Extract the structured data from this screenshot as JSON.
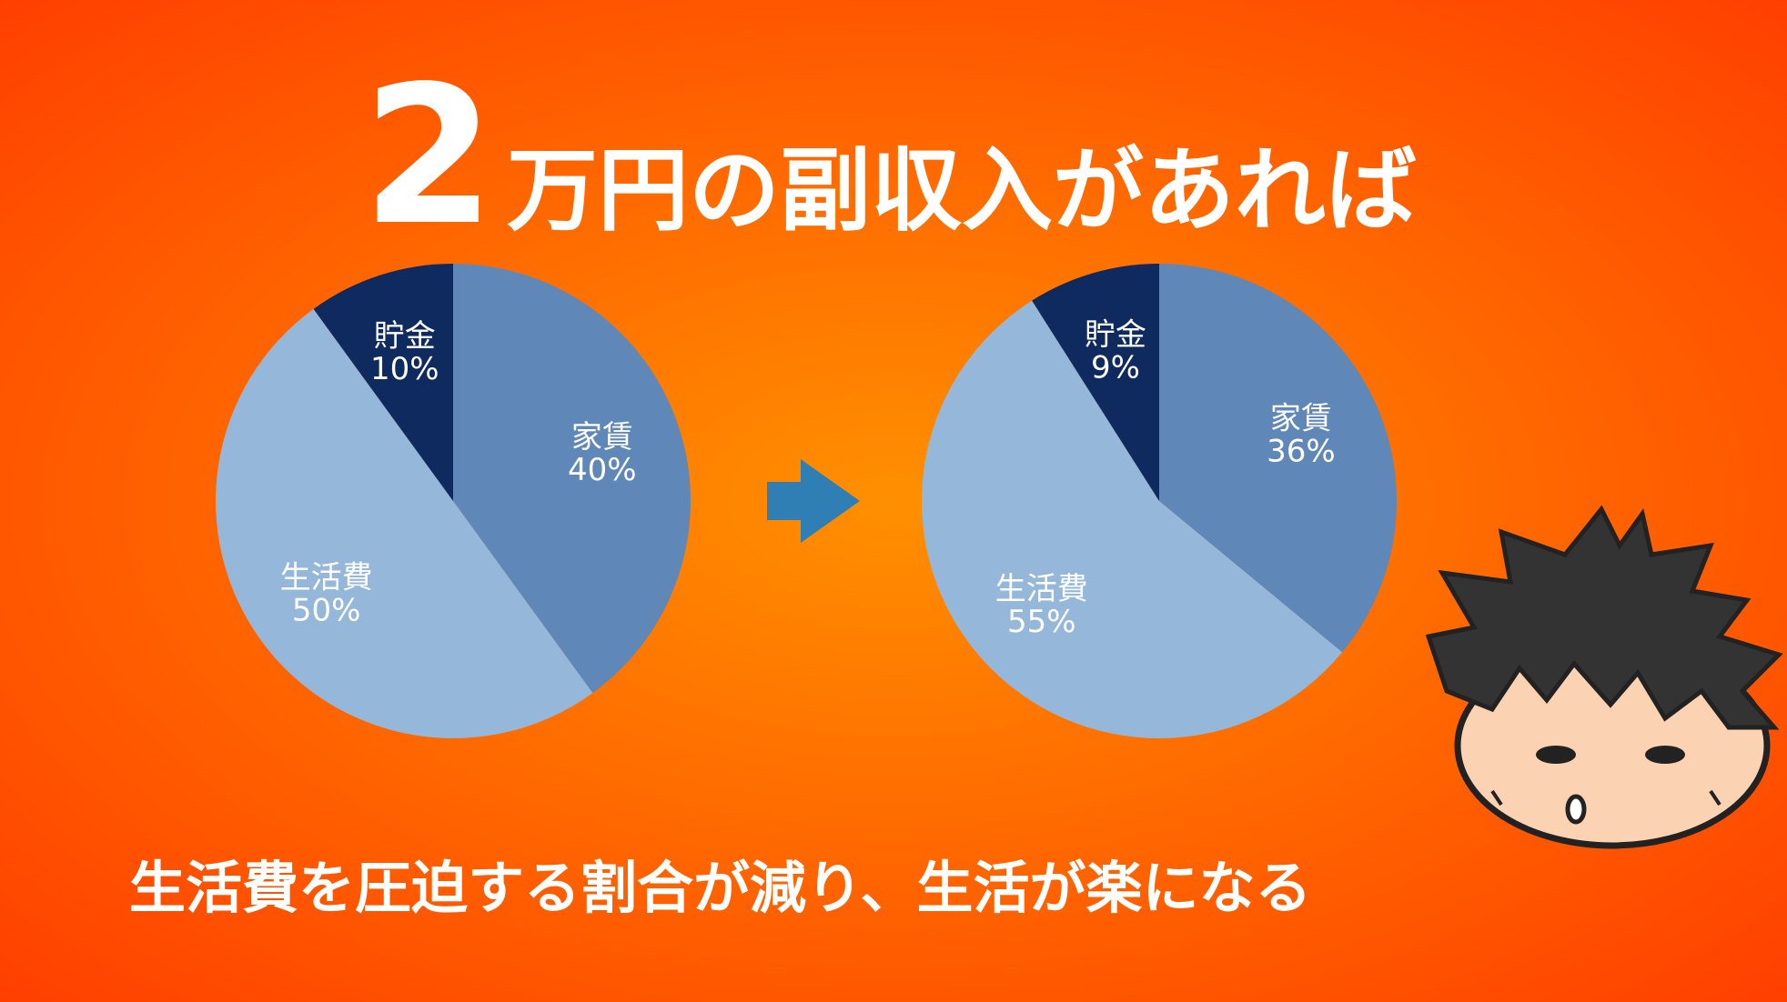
{
  "title": [
    "2",
    "万円の副収入があれば"
  ],
  "caption": "生活費を圧迫する割合が減り、生活が楽になる",
  "chart_data": [
    {
      "type": "pie",
      "categories": [
        "家賃",
        "生活費",
        "貯金"
      ],
      "values": [
        40,
        50,
        10
      ],
      "value_labels": [
        "40%",
        "50%",
        "10%"
      ],
      "colors": [
        "#5f87b8",
        "#95b7da",
        "#0f2a5e"
      ]
    },
    {
      "type": "pie",
      "categories": [
        "家賃",
        "生活費",
        "貯金"
      ],
      "values": [
        36,
        55,
        9
      ],
      "value_labels": [
        "36%",
        "55%",
        "9%"
      ],
      "colors": [
        "#5f87b8",
        "#95b7da",
        "#0f2a5e"
      ]
    }
  ]
}
